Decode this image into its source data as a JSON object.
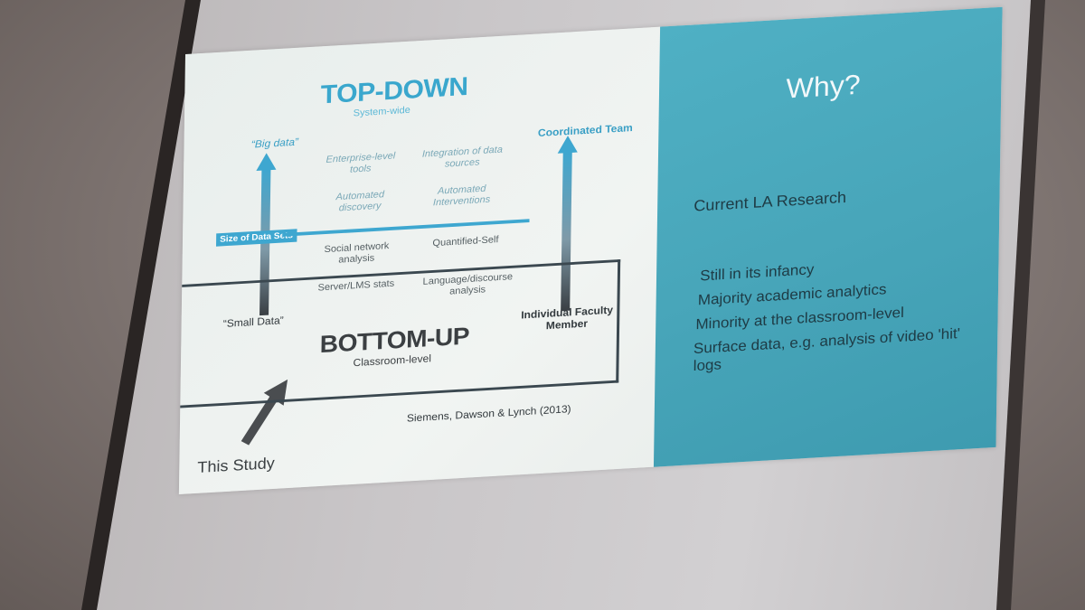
{
  "slide": {
    "left": {
      "top_down_title": "TOP-DOWN",
      "top_down_subtitle": "System-wide",
      "big_data": "“Big data”",
      "coordinated_team": "Coordinated Team",
      "cells": {
        "enterprise": "Enterprise-level tools",
        "integration": "Integration of data sources",
        "automated_discovery": "Automated discovery",
        "automated_interventions": "Automated Interventions",
        "social_network": "Social network analysis",
        "quantified_self": "Quantified-Self",
        "server_lms": "Server/LMS stats",
        "language": "Language/discourse analysis"
      },
      "size_of_data_sets": "Size of Data Sets",
      "small_data": "“Small Data”",
      "individual_faculty": "Individual Faculty Member",
      "bottom_up_title": "BOTTOM-UP",
      "bottom_up_subtitle": "Classroom-level",
      "citation": "Siemens, Dawson & Lynch (2013)",
      "this_study": "This Study"
    },
    "right": {
      "title": "Why?",
      "heading": "Current LA Research",
      "bullets": [
        "Still in its infancy",
        "Majority academic analytics",
        "Minority at the classroom-level",
        "Surface data, e.g. analysis of video 'hit' logs"
      ]
    }
  },
  "colors": {
    "accent_blue": "#3aa7cd",
    "panel_teal": "#48a6ba",
    "dark_text": "#3b3f42"
  }
}
